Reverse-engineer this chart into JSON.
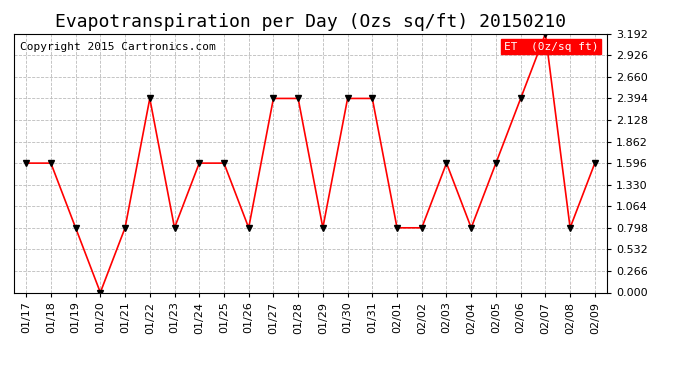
{
  "title": "Evapotranspiration per Day (Ozs sq/ft) 20150210",
  "copyright": "Copyright 2015 Cartronics.com",
  "legend_label": "ET  (0z/sq ft)",
  "dates": [
    "01/17",
    "01/18",
    "01/19",
    "01/20",
    "01/21",
    "01/22",
    "01/23",
    "01/24",
    "01/25",
    "01/26",
    "01/27",
    "01/28",
    "01/29",
    "01/30",
    "01/31",
    "02/01",
    "02/02",
    "02/03",
    "02/04",
    "02/05",
    "02/06",
    "02/07",
    "02/08",
    "02/09"
  ],
  "values": [
    1.596,
    1.596,
    0.798,
    0.0,
    0.798,
    2.394,
    0.798,
    1.596,
    1.596,
    0.798,
    2.394,
    2.394,
    0.798,
    2.394,
    2.394,
    0.798,
    0.798,
    1.596,
    0.798,
    1.596,
    2.394,
    3.192,
    0.798,
    1.596
  ],
  "ylim": [
    0.0,
    3.192
  ],
  "yticks": [
    0.0,
    0.266,
    0.532,
    0.798,
    1.064,
    1.33,
    1.596,
    1.862,
    2.128,
    2.394,
    2.66,
    2.926,
    3.192
  ],
  "line_color": "red",
  "marker_color": "black",
  "background_color": "white",
  "grid_color": "#bbbbbb",
  "legend_bg": "red",
  "legend_text_color": "white",
  "title_fontsize": 13,
  "copyright_fontsize": 8,
  "tick_fontsize": 8
}
